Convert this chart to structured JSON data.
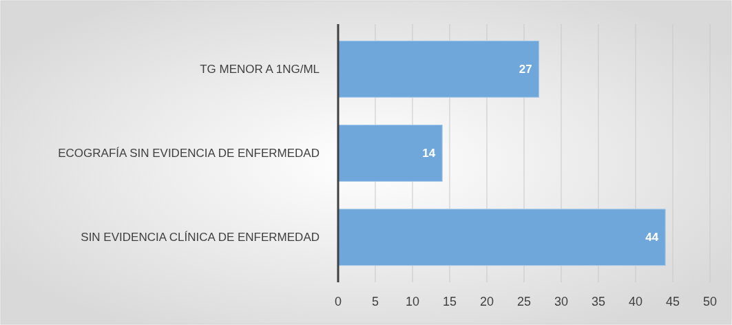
{
  "chart_data": {
    "type": "bar",
    "orientation": "horizontal",
    "categories": [
      "TG MENOR A 1NG/ML",
      "ECOGRAFÍA SIN EVIDENCIA DE ENFERMEDAD",
      "SIN EVIDENCIA CLÍNICA DE ENFERMEDAD"
    ],
    "values": [
      27,
      14,
      44
    ],
    "color": "#6fa7db",
    "xlim": [
      0,
      50
    ],
    "xticks": [
      0,
      5,
      10,
      15,
      20,
      25,
      30,
      35,
      40,
      45,
      50
    ],
    "grid": "x",
    "data_labels": true
  }
}
